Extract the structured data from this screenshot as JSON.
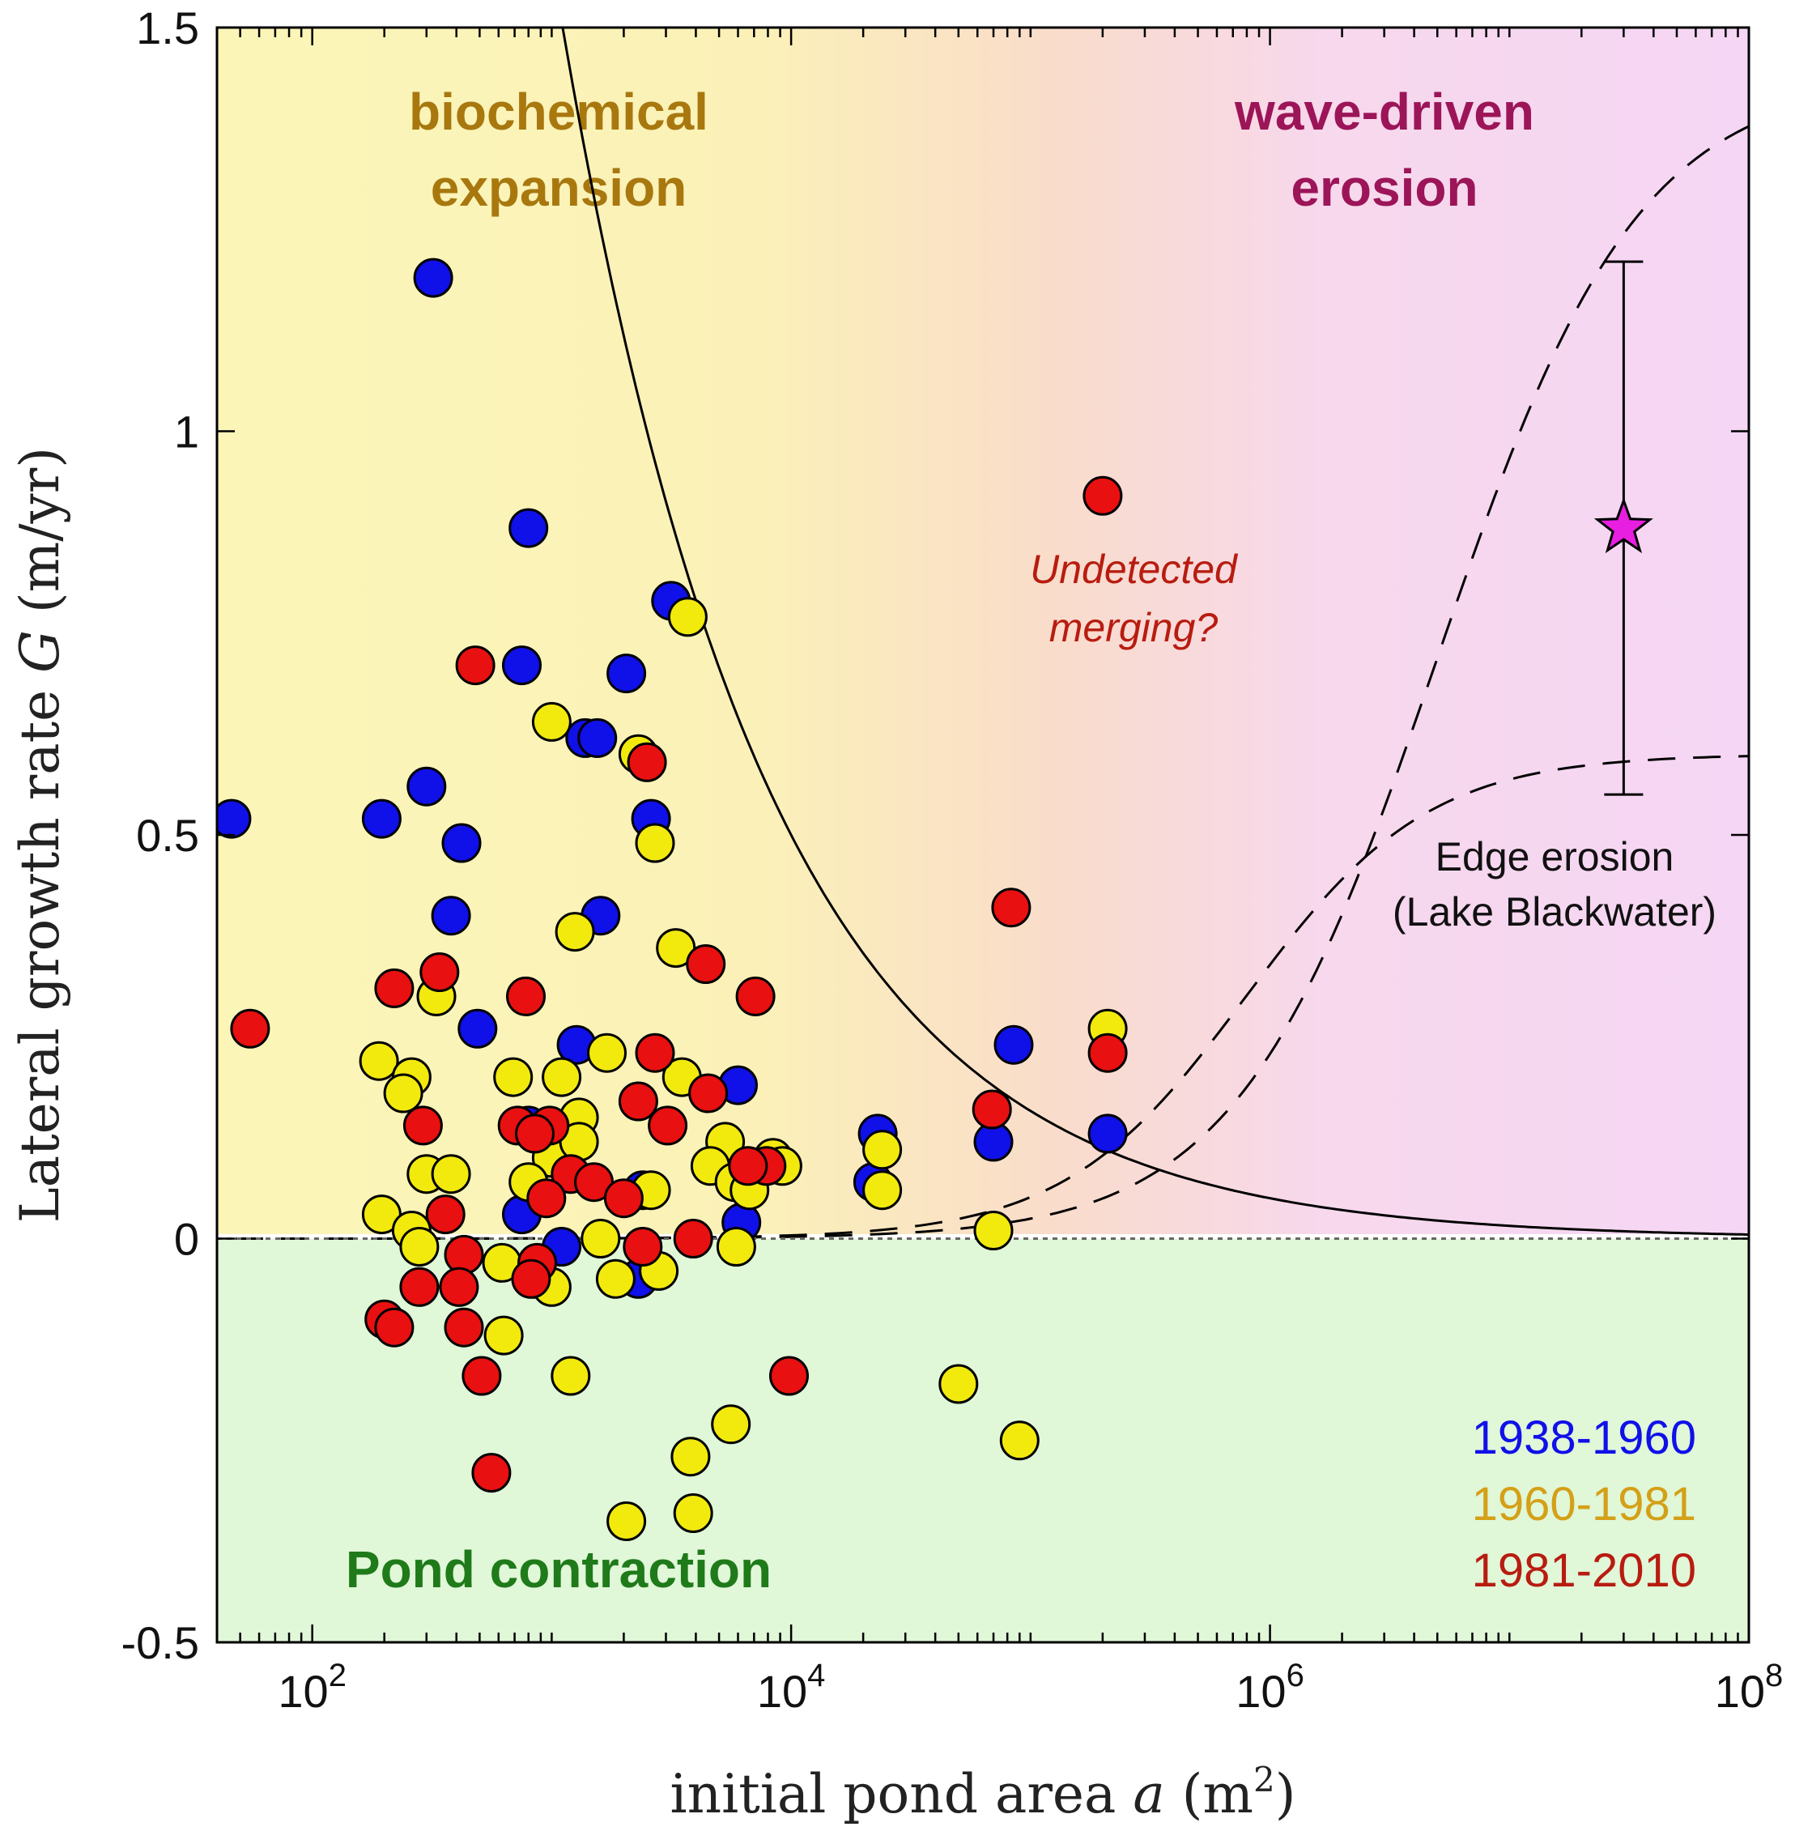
{
  "chart_data": {
    "type": "scatter",
    "xlabel": {
      "text": "initial pond area",
      "var": "a",
      "unit": "(m",
      "unit_sup": "2",
      "unit_close": ")"
    },
    "ylabel": {
      "text": "Lateral growth rate",
      "var": "G",
      "unit": "(m/yr)"
    },
    "x_scale": "log10",
    "xlim": [
      40,
      100000000
    ],
    "ylim": [
      -0.5,
      1.5
    ],
    "x_ticks": [
      {
        "value": 100,
        "base": "10",
        "exp": "2"
      },
      {
        "value": 10000,
        "base": "10",
        "exp": "4"
      },
      {
        "value": 1000000,
        "base": "10",
        "exp": "6"
      },
      {
        "value": 100000000,
        "base": "10",
        "exp": "8"
      }
    ],
    "y_ticks": [
      {
        "value": -0.5,
        "label": "-0.5"
      },
      {
        "value": 0,
        "label": "0"
      },
      {
        "value": 0.5,
        "label": "0.5"
      },
      {
        "value": 1,
        "label": "1"
      },
      {
        "value": 1.5,
        "label": "1.5"
      }
    ],
    "regions": [
      {
        "name": "biochemical-label",
        "lines": [
          "biochemical",
          "expansion"
        ],
        "color": "#a8780f"
      },
      {
        "name": "wave-label",
        "lines": [
          "wave-driven",
          "erosion"
        ],
        "color": "#9c1558"
      },
      {
        "name": "contraction-label",
        "lines": [
          "Pond contraction"
        ],
        "color": "#1f7a1a"
      }
    ],
    "background_colors": {
      "expansion": "#fbf6b8",
      "erosion": "#f5d6f4",
      "contraction": "#e0f7d8"
    },
    "annotations": {
      "merging": [
        "Undetected",
        "merging?"
      ],
      "edge": [
        "Edge erosion",
        "(Lake Blackwater)"
      ]
    },
    "star": {
      "x": 30000000,
      "y": 0.88,
      "err_low": 0.55,
      "err_high": 1.21,
      "color": "#e81ee0"
    },
    "curves": {
      "threshold_solid": "G = 50 / sqrt(a)",
      "model_dashed": "wave erosion model lines"
    },
    "series": [
      {
        "name": "1938-1960",
        "color": "#1010e8",
        "points": [
          [
            46,
            0.52
          ],
          [
            195,
            0.52
          ],
          [
            320,
            1.19
          ],
          [
            300,
            0.56
          ],
          [
            420,
            0.49
          ],
          [
            380,
            0.4
          ],
          [
            490,
            0.26
          ],
          [
            800,
            0.88
          ],
          [
            750,
            0.71
          ],
          [
            1380,
            0.62
          ],
          [
            1550,
            0.62
          ],
          [
            2050,
            0.7
          ],
          [
            2600,
            0.52
          ],
          [
            3150,
            0.79
          ],
          [
            1600,
            0.4
          ],
          [
            1270,
            0.24
          ],
          [
            800,
            0.14
          ],
          [
            750,
            0.03
          ],
          [
            1100,
            -0.01
          ],
          [
            2400,
            0.06
          ],
          [
            2300,
            -0.05
          ],
          [
            6000,
            0.19
          ],
          [
            6200,
            0.02
          ],
          [
            23000,
            0.13
          ],
          [
            22000,
            0.07
          ],
          [
            85000,
            0.24
          ],
          [
            70000,
            0.12
          ],
          [
            210000,
            0.13
          ]
        ]
      },
      {
        "name": "1960-1981",
        "color": "#f2ea0d",
        "points": [
          [
            1000,
            0.64
          ],
          [
            3700,
            0.77
          ],
          [
            2300,
            0.6
          ],
          [
            2700,
            0.49
          ],
          [
            1250,
            0.38
          ],
          [
            3300,
            0.36
          ],
          [
            330,
            0.3
          ],
          [
            190,
            0.22
          ],
          [
            260,
            0.2
          ],
          [
            240,
            0.18
          ],
          [
            690,
            0.2
          ],
          [
            1100,
            0.2
          ],
          [
            1300,
            0.15
          ],
          [
            1700,
            0.23
          ],
          [
            3500,
            0.2
          ],
          [
            1000,
            0.1
          ],
          [
            300,
            0.08
          ],
          [
            380,
            0.08
          ],
          [
            800,
            0.07
          ],
          [
            1300,
            0.12
          ],
          [
            5300,
            0.12
          ],
          [
            4600,
            0.09
          ],
          [
            5800,
            0.07
          ],
          [
            2600,
            0.06
          ],
          [
            6700,
            0.06
          ],
          [
            8400,
            0.1
          ],
          [
            9200,
            0.09
          ],
          [
            24000,
            0.11
          ],
          [
            24000,
            0.06
          ],
          [
            195,
            0.03
          ],
          [
            260,
            0.01
          ],
          [
            280,
            -0.01
          ],
          [
            620,
            -0.03
          ],
          [
            860,
            -0.05
          ],
          [
            1600,
            0.0
          ],
          [
            1850,
            -0.05
          ],
          [
            2800,
            -0.04
          ],
          [
            5900,
            -0.01
          ],
          [
            1000,
            -0.06
          ],
          [
            630,
            -0.12
          ],
          [
            1200,
            -0.17
          ],
          [
            5600,
            -0.23
          ],
          [
            3800,
            -0.27
          ],
          [
            2050,
            -0.35
          ],
          [
            3900,
            -0.34
          ],
          [
            50000,
            -0.18
          ],
          [
            70000,
            0.01
          ],
          [
            90000,
            -0.25
          ],
          [
            210000,
            0.26
          ]
        ]
      },
      {
        "name": "1981-2010",
        "color": "#e81010",
        "points": [
          [
            55,
            0.26
          ],
          [
            480,
            0.71
          ],
          [
            2500,
            0.59
          ],
          [
            200000,
            0.92
          ],
          [
            83000,
            0.41
          ],
          [
            210000,
            0.23
          ],
          [
            220,
            0.31
          ],
          [
            340,
            0.33
          ],
          [
            780,
            0.3
          ],
          [
            4400,
            0.34
          ],
          [
            7100,
            0.3
          ],
          [
            2700,
            0.23
          ],
          [
            4500,
            0.18
          ],
          [
            2300,
            0.17
          ],
          [
            3050,
            0.14
          ],
          [
            290,
            0.14
          ],
          [
            720,
            0.14
          ],
          [
            980,
            0.14
          ],
          [
            850,
            0.13
          ],
          [
            1200,
            0.08
          ],
          [
            1500,
            0.07
          ],
          [
            950,
            0.05
          ],
          [
            360,
            0.03
          ],
          [
            2000,
            0.05
          ],
          [
            7900,
            0.09
          ],
          [
            6600,
            0.09
          ],
          [
            2400,
            -0.01
          ],
          [
            3900,
            0.0
          ],
          [
            430,
            -0.02
          ],
          [
            870,
            -0.03
          ],
          [
            280,
            -0.06
          ],
          [
            820,
            -0.05
          ],
          [
            410,
            -0.06
          ],
          [
            200,
            -0.1
          ],
          [
            220,
            -0.11
          ],
          [
            430,
            -0.11
          ],
          [
            510,
            -0.17
          ],
          [
            560,
            -0.29
          ],
          [
            9800,
            -0.17
          ],
          [
            69000,
            0.16
          ]
        ]
      }
    ]
  }
}
